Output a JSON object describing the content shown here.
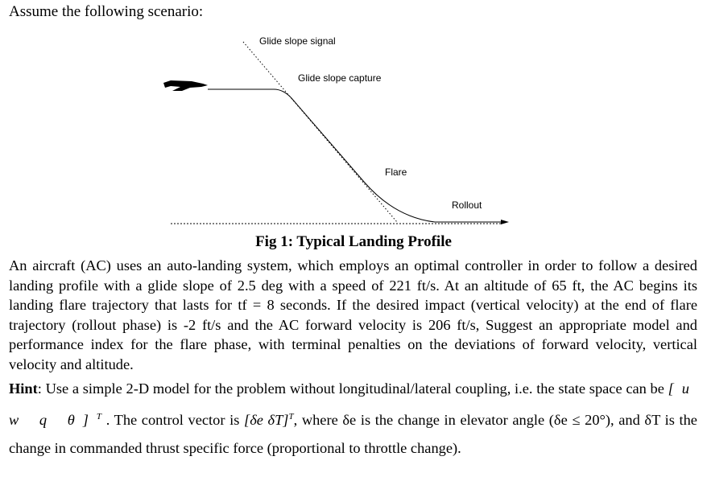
{
  "intro": "Assume the following scenario:",
  "figure": {
    "labels": {
      "glide_slope_signal": "Glide slope signal",
      "glide_slope_capture": "Glide slope capture",
      "flare": "Flare",
      "rollout": "Rollout"
    }
  },
  "caption": "Fig 1: Typical Landing Profile",
  "paragraph": "An aircraft (AC) uses an auto-landing system, which employs an optimal controller in order to follow a desired landing profile with a glide slope of 2.5 deg with a speed of 221 ft/s. At an altitude of 65 ft, the AC begins its landing flare trajectory that lasts for tf = 8 seconds. If the desired impact (vertical velocity) at the end of flare trajectory (rollout phase) is -2 ft/s and the AC forward velocity is 206 ft/s, Suggest an appropriate model and performance index for the flare phase, with terminal penalties on the deviations of forward velocity, vertical velocity and altitude.",
  "hint": {
    "label": "Hint",
    "part1": ": Use a simple 2-D model for the problem without longitudinal/lateral coupling, i.e. the state space can be",
    "state_vector": "[u  w  q  θ]",
    "state_sup": "T",
    "part2": ". The control vector is",
    "control_vector": "[δe  δT]",
    "control_sup": "T",
    "part3": ", where δe is the change in elevator angle (δe ≤ 20°), and δT is the change in commanded thrust specific force (proportional to throttle change)."
  }
}
